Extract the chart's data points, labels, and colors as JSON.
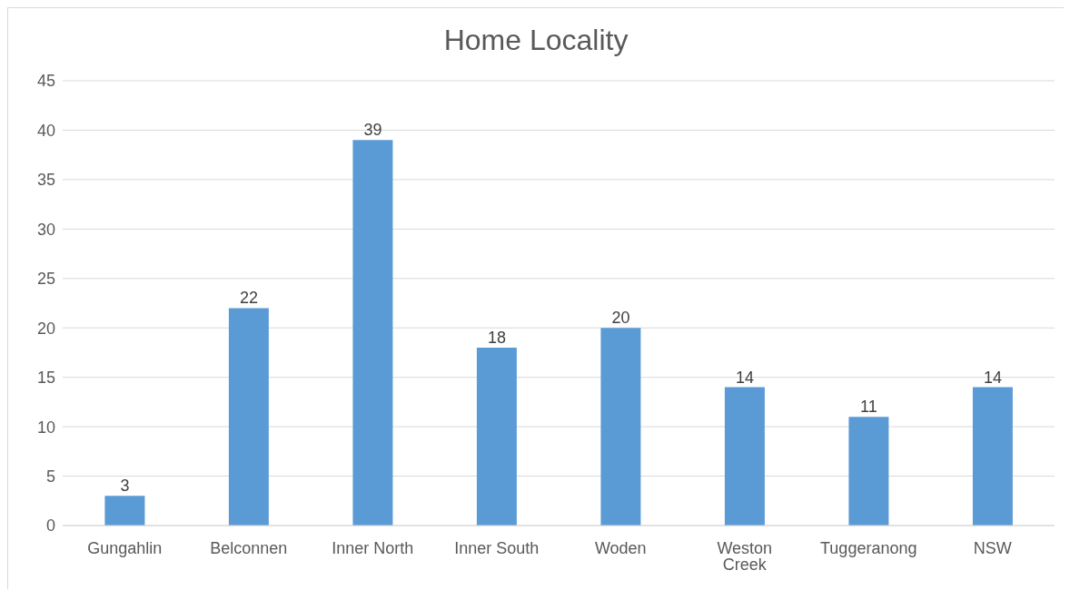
{
  "chart_data": {
    "type": "bar",
    "title": "Home Locality",
    "categories": [
      "Gungahlin",
      "Belconnen",
      "Inner North",
      "Inner South",
      "Woden",
      "Weston Creek",
      "Tuggeranong",
      "NSW"
    ],
    "values": [
      3,
      22,
      39,
      18,
      20,
      14,
      11,
      14
    ],
    "color": "#5b9bd5",
    "ylim": [
      0,
      45
    ],
    "yticks": [
      0,
      5,
      10,
      15,
      20,
      25,
      30,
      35,
      40,
      45
    ],
    "grid": "y",
    "data_labels": true
  }
}
